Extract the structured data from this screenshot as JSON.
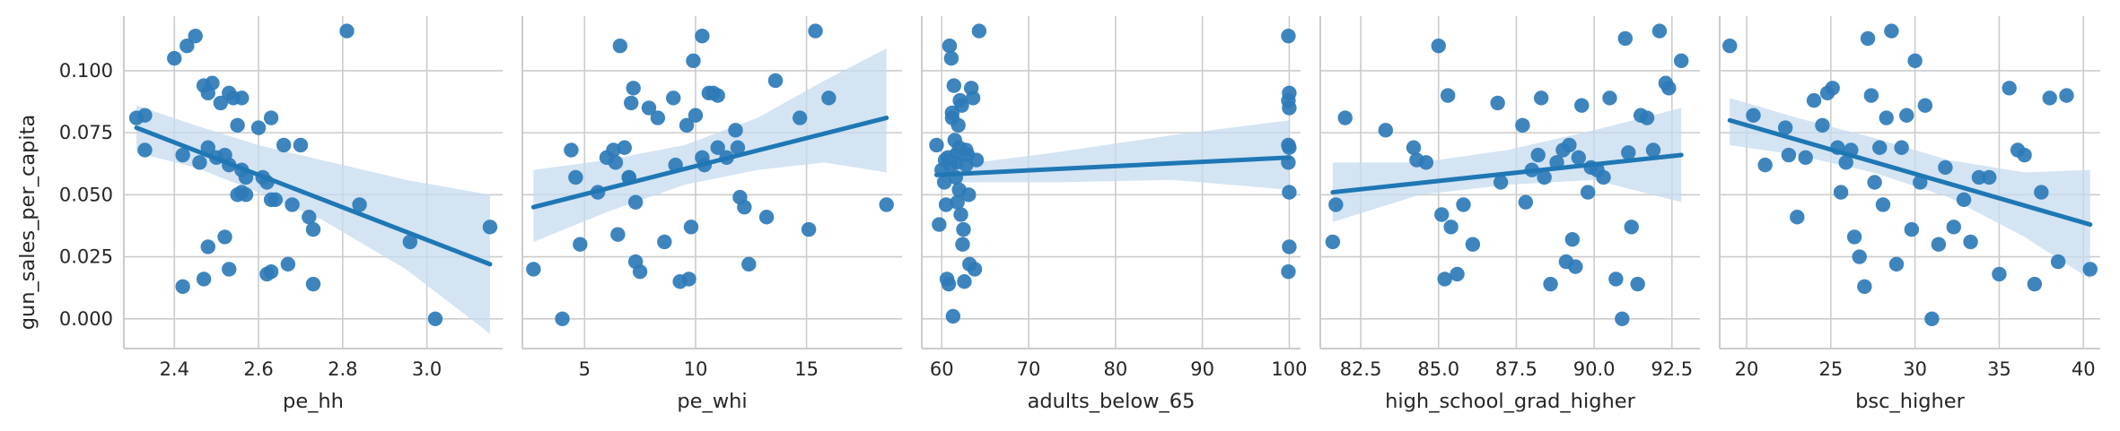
{
  "colors": {
    "points": "#2e7bb8",
    "line": "#1f77b4",
    "band": "#c6dbef",
    "grid": "#cccccc",
    "axis": "#262626"
  },
  "chart_data": [
    {
      "type": "scatter",
      "xlabel": "pe_hh",
      "ylabel": "gun_sales_per_capita",
      "xlim": [
        2.28,
        3.18
      ],
      "ylim": [
        -0.012,
        0.122
      ],
      "xticks": [
        2.4,
        2.6,
        2.8,
        3.0
      ],
      "xtick_labels": [
        "2.4",
        "2.6",
        "2.8",
        "3.0"
      ],
      "yticks": [
        0.0,
        0.025,
        0.05,
        0.075,
        0.1
      ],
      "ytick_labels": [
        "0.000",
        "0.025",
        "0.050",
        "0.075",
        "0.100"
      ],
      "grid": true,
      "x": [
        2.31,
        2.33,
        2.33,
        2.4,
        2.42,
        2.43,
        2.45,
        2.47,
        2.48,
        2.49,
        2.46,
        2.48,
        2.5,
        2.51,
        2.53,
        2.54,
        2.56,
        2.52,
        2.53,
        2.55,
        2.57,
        2.55,
        2.56,
        2.6,
        2.61,
        2.63,
        2.62,
        2.64,
        2.66,
        2.68,
        2.62,
        2.63,
        2.67,
        2.7,
        2.72,
        2.73,
        2.81,
        2.84,
        2.96,
        3.02,
        3.15,
        2.42,
        2.47,
        2.52,
        2.53,
        2.63,
        2.73,
        2.57,
        2.56,
        2.48
      ],
      "y": [
        0.081,
        0.082,
        0.068,
        0.105,
        0.013,
        0.11,
        0.114,
        0.094,
        0.091,
        0.095,
        0.063,
        0.069,
        0.065,
        0.087,
        0.091,
        0.089,
        0.089,
        0.066,
        0.062,
        0.078,
        0.057,
        0.05,
        0.051,
        0.077,
        0.057,
        0.081,
        0.055,
        0.048,
        0.07,
        0.046,
        0.018,
        0.048,
        0.022,
        0.07,
        0.041,
        0.036,
        0.116,
        0.046,
        0.031,
        0.0,
        0.037,
        0.066,
        0.016,
        0.033,
        0.02,
        0.019,
        0.014,
        0.05,
        0.06,
        0.029
      ],
      "regression": {
        "x": [
          2.31,
          3.15
        ],
        "y": [
          0.077,
          0.022
        ]
      },
      "ci_upper": [
        0.086,
        0.078,
        0.07,
        0.064,
        0.056,
        0.05
      ],
      "ci_lower": [
        0.067,
        0.061,
        0.051,
        0.04,
        0.02,
        -0.006
      ],
      "ci_x": [
        2.31,
        2.45,
        2.6,
        2.75,
        2.95,
        3.15
      ]
    },
    {
      "type": "scatter",
      "xlabel": "pe_whi",
      "ylabel": "",
      "xlim": [
        2.2,
        19.3
      ],
      "ylim": [
        -0.012,
        0.122
      ],
      "xticks": [
        5,
        10,
        15
      ],
      "xtick_labels": [
        "5",
        "10",
        "15"
      ],
      "yticks": [
        0.0,
        0.025,
        0.05,
        0.075,
        0.1
      ],
      "grid": true,
      "x": [
        2.7,
        4.0,
        4.4,
        4.6,
        4.8,
        5.6,
        6.0,
        6.3,
        6.5,
        6.6,
        6.8,
        7.0,
        7.0,
        7.2,
        7.3,
        7.5,
        7.9,
        8.3,
        8.6,
        9.0,
        9.1,
        9.3,
        9.6,
        9.8,
        9.9,
        10.0,
        10.3,
        10.4,
        10.6,
        10.8,
        11.0,
        11.4,
        11.8,
        11.9,
        12.0,
        12.2,
        12.4,
        13.2,
        13.6,
        14.7,
        15.1,
        15.4,
        16.0,
        18.6,
        10.3,
        11.0,
        6.4,
        7.1,
        7.3,
        9.7
      ],
      "y": [
        0.02,
        0.0,
        0.068,
        0.057,
        0.03,
        0.051,
        0.065,
        0.068,
        0.034,
        0.11,
        0.069,
        0.057,
        0.057,
        0.093,
        0.023,
        0.019,
        0.085,
        0.081,
        0.031,
        0.089,
        0.062,
        0.015,
        0.078,
        0.037,
        0.104,
        0.082,
        0.114,
        0.062,
        0.091,
        0.091,
        0.069,
        0.065,
        0.076,
        0.069,
        0.049,
        0.045,
        0.022,
        0.041,
        0.096,
        0.081,
        0.036,
        0.116,
        0.089,
        0.046,
        0.065,
        0.09,
        0.063,
        0.087,
        0.047,
        0.016
      ],
      "regression": {
        "x": [
          2.7,
          18.6
        ],
        "y": [
          0.045,
          0.081
        ]
      },
      "ci_upper": [
        0.06,
        0.064,
        0.07,
        0.081,
        0.096,
        0.109
      ],
      "ci_lower": [
        0.031,
        0.043,
        0.054,
        0.06,
        0.063,
        0.059
      ],
      "ci_x": [
        2.7,
        6.0,
        9.5,
        12.8,
        15.8,
        18.6
      ]
    },
    {
      "type": "scatter",
      "xlabel": "adults_below_65",
      "ylabel": "",
      "xlim": [
        57.7,
        101.3
      ],
      "ylim": [
        -0.012,
        0.122
      ],
      "xticks": [
        60,
        70,
        80,
        90,
        100
      ],
      "xtick_labels": [
        "60",
        "70",
        "80",
        "90",
        "100"
      ],
      "yticks": [
        0.0,
        0.025,
        0.05,
        0.075,
        0.1
      ],
      "grid": true,
      "x": [
        59.4,
        59.7,
        60.0,
        60.4,
        60.6,
        60.8,
        60.9,
        61.0,
        61.1,
        61.2,
        61.3,
        61.4,
        61.5,
        61.6,
        61.7,
        61.8,
        61.9,
        62.0,
        62.1,
        62.2,
        62.3,
        62.5,
        62.6,
        62.8,
        63.0,
        63.2,
        63.4,
        63.6,
        63.8,
        64.0,
        64.3,
        60.3,
        60.5,
        60.7,
        61.2,
        61.6,
        62.0,
        62.4,
        62.8,
        63.1,
        99.9,
        100.0,
        99.9,
        100.0,
        99.9,
        100.0,
        99.9,
        100.0,
        100.0,
        99.9
      ],
      "y": [
        0.07,
        0.038,
        0.06,
        0.064,
        0.016,
        0.014,
        0.11,
        0.062,
        0.105,
        0.083,
        0.001,
        0.094,
        0.072,
        0.066,
        0.063,
        0.047,
        0.078,
        0.052,
        0.088,
        0.042,
        0.086,
        0.036,
        0.015,
        0.068,
        0.066,
        0.022,
        0.093,
        0.089,
        0.02,
        0.064,
        0.116,
        0.055,
        0.046,
        0.065,
        0.081,
        0.057,
        0.069,
        0.03,
        0.062,
        0.05,
        0.114,
        0.091,
        0.088,
        0.085,
        0.07,
        0.069,
        0.063,
        0.051,
        0.029,
        0.019
      ],
      "regression": {
        "x": [
          59.4,
          100.0
        ],
        "y": [
          0.058,
          0.065
        ]
      },
      "ci_upper": [
        0.061,
        0.067,
        0.074,
        0.08
      ],
      "ci_lower": [
        0.055,
        0.055,
        0.056,
        0.052
      ],
      "ci_x": [
        59.4,
        73.0,
        86.5,
        100.0
      ]
    },
    {
      "type": "scatter",
      "xlabel": "high_school_grad_higher",
      "ylabel": "",
      "xlim": [
        81.2,
        93.4
      ],
      "ylim": [
        -0.012,
        0.122
      ],
      "xticks": [
        82.5,
        85.0,
        87.5,
        90.0,
        92.5
      ],
      "xtick_labels": [
        "82.5",
        "85.0",
        "87.5",
        "90.0",
        "92.5"
      ],
      "yticks": [
        0.0,
        0.025,
        0.05,
        0.075,
        0.1
      ],
      "grid": true,
      "x": [
        81.6,
        81.7,
        82.0,
        83.3,
        84.2,
        84.3,
        84.6,
        85.0,
        85.1,
        85.3,
        85.4,
        85.6,
        85.8,
        86.1,
        86.9,
        87.0,
        87.7,
        87.8,
        88.2,
        88.3,
        88.4,
        88.6,
        88.8,
        89.0,
        89.1,
        89.2,
        89.3,
        89.4,
        89.6,
        89.8,
        89.9,
        90.1,
        90.3,
        90.5,
        90.7,
        91.0,
        91.1,
        91.2,
        91.4,
        91.5,
        91.7,
        91.9,
        92.1,
        92.3,
        92.4,
        92.8,
        85.2,
        88.0,
        89.5,
        90.9
      ],
      "y": [
        0.031,
        0.046,
        0.081,
        0.076,
        0.069,
        0.064,
        0.063,
        0.11,
        0.042,
        0.09,
        0.037,
        0.018,
        0.046,
        0.03,
        0.087,
        0.055,
        0.078,
        0.047,
        0.066,
        0.089,
        0.057,
        0.014,
        0.063,
        0.068,
        0.023,
        0.07,
        0.032,
        0.021,
        0.086,
        0.051,
        0.061,
        0.06,
        0.057,
        0.089,
        0.016,
        0.113,
        0.067,
        0.037,
        0.014,
        0.082,
        0.081,
        0.068,
        0.116,
        0.095,
        0.093,
        0.104,
        0.016,
        0.06,
        0.065,
        0.0
      ],
      "regression": {
        "x": [
          81.6,
          92.8
        ],
        "y": [
          0.051,
          0.066
        ]
      },
      "ci_upper": [
        0.063,
        0.063,
        0.068,
        0.076,
        0.085
      ],
      "ci_lower": [
        0.039,
        0.05,
        0.054,
        0.056,
        0.047
      ],
      "ci_x": [
        81.6,
        84.4,
        87.2,
        90.0,
        92.8
      ]
    },
    {
      "type": "scatter",
      "xlabel": "bsc_higher",
      "ylabel": "",
      "xlim": [
        18.4,
        41.0
      ],
      "ylim": [
        -0.012,
        0.122
      ],
      "xticks": [
        20,
        25,
        30,
        35,
        40
      ],
      "xtick_labels": [
        "20",
        "25",
        "30",
        "35",
        "40"
      ],
      "yticks": [
        0.0,
        0.025,
        0.05,
        0.075,
        0.1
      ],
      "grid": true,
      "x": [
        19.0,
        20.4,
        21.1,
        22.3,
        22.5,
        23.0,
        23.5,
        24.0,
        24.5,
        24.8,
        25.1,
        25.4,
        25.6,
        25.9,
        26.2,
        26.4,
        26.7,
        27.0,
        27.2,
        27.4,
        27.6,
        27.9,
        28.1,
        28.3,
        28.6,
        28.9,
        29.2,
        29.5,
        29.8,
        30.0,
        30.3,
        30.6,
        31.0,
        31.4,
        31.8,
        32.3,
        32.9,
        33.3,
        33.8,
        34.4,
        35.0,
        35.6,
        36.1,
        36.5,
        37.1,
        37.5,
        38.0,
        38.5,
        39.0,
        40.4
      ],
      "y": [
        0.11,
        0.082,
        0.062,
        0.077,
        0.066,
        0.041,
        0.065,
        0.088,
        0.078,
        0.091,
        0.093,
        0.069,
        0.051,
        0.063,
        0.068,
        0.033,
        0.025,
        0.013,
        0.113,
        0.09,
        0.055,
        0.069,
        0.046,
        0.081,
        0.116,
        0.022,
        0.069,
        0.082,
        0.036,
        0.104,
        0.055,
        0.086,
        0.0,
        0.03,
        0.061,
        0.037,
        0.048,
        0.031,
        0.057,
        0.057,
        0.018,
        0.093,
        0.068,
        0.066,
        0.014,
        0.051,
        0.089,
        0.023,
        0.09,
        0.02
      ],
      "regression": {
        "x": [
          19.0,
          40.4
        ],
        "y": [
          0.08,
          0.038
        ]
      },
      "ci_upper": [
        0.089,
        0.081,
        0.073,
        0.064,
        0.059,
        0.06
      ],
      "ci_lower": [
        0.07,
        0.066,
        0.059,
        0.049,
        0.033,
        0.016
      ],
      "ci_x": [
        19.0,
        23.0,
        27.5,
        32.0,
        36.5,
        40.4
      ]
    }
  ]
}
